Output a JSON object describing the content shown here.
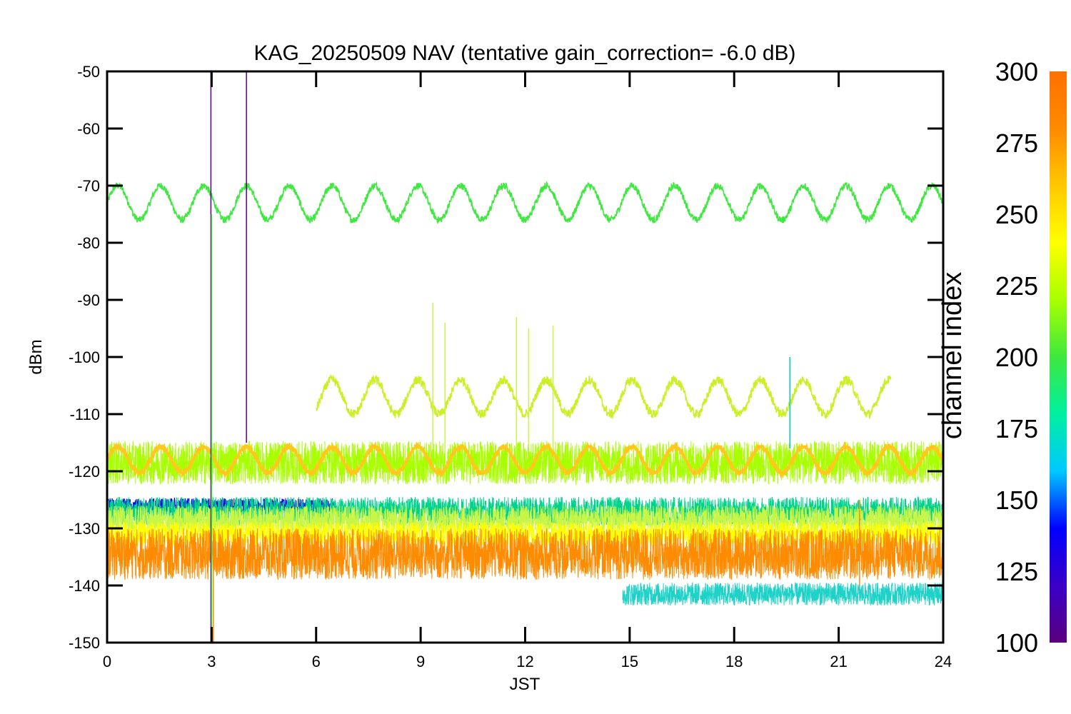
{
  "chart_data": {
    "type": "line",
    "title": "KAG_20250509 NAV (tentative gain_correction= -6.0 dB)",
    "xlabel": "JST",
    "ylabel": "dBm",
    "xlim": [
      0,
      24
    ],
    "ylim": [
      -150,
      -50
    ],
    "x_ticks": [
      "0",
      "3",
      "6",
      "9",
      "12",
      "15",
      "18",
      "21",
      "24"
    ],
    "y_ticks": [
      "-50",
      "-60",
      "-70",
      "-80",
      "-90",
      "-100",
      "-110",
      "-120",
      "-130",
      "-140",
      "-150"
    ],
    "grid": false,
    "legend": "none",
    "colorbar": {
      "label": "channel index",
      "range": [
        100,
        300
      ],
      "ticks": [
        "100",
        "125",
        "150",
        "175",
        "200",
        "225",
        "250",
        "275",
        "300"
      ],
      "colormap": "rainbow",
      "stops": [
        "#5a007f",
        "#3a00c8",
        "#0000ff",
        "#00c8ff",
        "#00f0a0",
        "#3ee83e",
        "#a8ff00",
        "#ffff00",
        "#ffc800",
        "#ff8a00",
        "#ff7000"
      ]
    },
    "series": [
      {
        "channel": 245,
        "color": "#3ee83e",
        "kind": "sine",
        "x_start": 0,
        "x_end": 24,
        "center": -73,
        "amplitude": 3,
        "period": 1.23,
        "noise": 0.6
      },
      {
        "channel": 262,
        "color": "#ccf028",
        "kind": "sine",
        "x_start": 6,
        "x_end": 22.5,
        "center": -107,
        "amplitude": 3,
        "period": 1.23,
        "noise": 0.8
      },
      {
        "channel": 255,
        "color": "#a8ff00",
        "kind": "band",
        "x_start": 0,
        "x_end": 24,
        "center": -118.5,
        "spread": 3.8
      },
      {
        "channel": 283,
        "color": "#ffc81e",
        "kind": "sine",
        "x_start": 0,
        "x_end": 24,
        "center": -118,
        "amplitude": 2.3,
        "period": 1.23,
        "noise": 0.3
      },
      {
        "channel": 140,
        "color": "#0000e6",
        "kind": "band",
        "x_start": 0,
        "x_end": 6.5,
        "center": -126,
        "spread": 1.3
      },
      {
        "channel": 205,
        "color": "#00d28c",
        "kind": "band",
        "x_start": 0,
        "x_end": 24,
        "center": -127,
        "spread": 2.5
      },
      {
        "channel": 258,
        "color": "#c8f546",
        "kind": "band",
        "x_start": 0,
        "x_end": 24,
        "center": -128.5,
        "spread": 2.5
      },
      {
        "channel": 270,
        "color": "#ffff00",
        "kind": "band",
        "x_start": 0,
        "x_end": 24,
        "center": -131,
        "spread": 2.2
      },
      {
        "channel": 295,
        "color": "#ff8c00",
        "kind": "band",
        "x_start": 0,
        "x_end": 24,
        "center": -134.5,
        "spread": 4.5
      },
      {
        "channel": 180,
        "color": "#1ed2c8",
        "kind": "band",
        "x_start": 14.8,
        "x_end": 24,
        "center": -141.5,
        "spread": 2.0
      }
    ],
    "spikes": [
      {
        "x": 2.98,
        "y_from": -150,
        "y_to": -50,
        "color": "#5a007f"
      },
      {
        "x": 3.0,
        "y_from": -150,
        "y_to": -75,
        "color": "#3ee83e"
      },
      {
        "x": 3.05,
        "y_from": -150,
        "y_to": -130,
        "color": "#ff8c00"
      },
      {
        "x": 4.0,
        "y_from": -115,
        "y_to": -50,
        "color": "#5a007f"
      },
      {
        "x": 9.35,
        "y_from": -116,
        "y_to": -90.5,
        "color": "#c8f546"
      },
      {
        "x": 9.7,
        "y_from": -116,
        "y_to": -94,
        "color": "#c8f546"
      },
      {
        "x": 11.75,
        "y_from": -116,
        "y_to": -93,
        "color": "#c8f546"
      },
      {
        "x": 12.1,
        "y_from": -116,
        "y_to": -95,
        "color": "#c8f546"
      },
      {
        "x": 12.8,
        "y_from": -116,
        "y_to": -94.5,
        "color": "#c8f546"
      },
      {
        "x": 19.6,
        "y_from": -116,
        "y_to": -100,
        "color": "#00c8c8"
      },
      {
        "x": 21.6,
        "y_from": -140,
        "y_to": -125,
        "color": "#ff8c00"
      }
    ]
  }
}
